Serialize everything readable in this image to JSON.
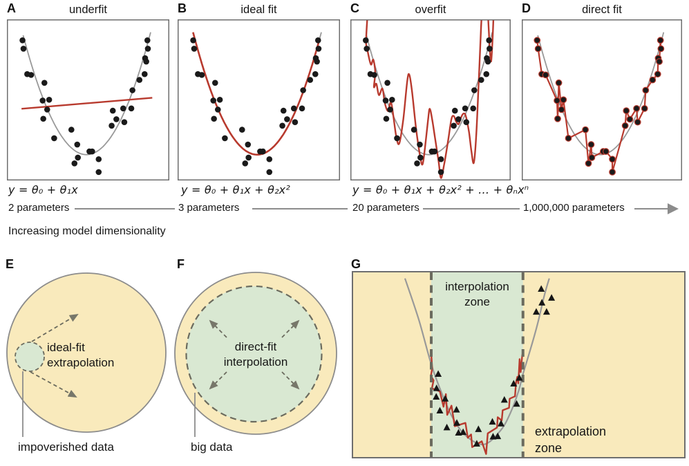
{
  "figure": {
    "caption": "Increasing model dimensionality"
  },
  "colors": {
    "red_fit": "#b83a2e",
    "gray_curve": "#999999",
    "dot": "#1a1a1a",
    "panel_border": "#6e6e6e",
    "axis_gray": "#8c8c8c",
    "yellow_fill": "#f9eabc",
    "green_fill": "#d9e8d2",
    "circle_stroke": "#8c8c8c",
    "dash_stroke": "#6b6b5e",
    "triangle": "#161616",
    "text": "#161616"
  },
  "top_panels": [
    {
      "letter": "A",
      "title": "underfit",
      "formula": "y = θ₀ + θ₁x",
      "param_label": "2 parameters"
    },
    {
      "letter": "B",
      "title": "ideal fit",
      "formula": "y = θ₀ + θ₁x + θ₂x²",
      "param_label": "3 parameters"
    },
    {
      "letter": "C",
      "title": "overfit",
      "formula": "y = θ₀ + θ₁x + θ₂x² + … + θₙxⁿ",
      "param_label": "20 parameters"
    },
    {
      "letter": "D",
      "title": "direct fit",
      "formula": "",
      "param_label": "1,000,000 parameters"
    }
  ],
  "panel_e": {
    "letter": "E",
    "label_line1": "ideal-fit",
    "label_line2": "extrapolation",
    "callout": "impoverished data"
  },
  "panel_f": {
    "letter": "F",
    "label_line1": "direct-fit",
    "label_line2": "interpolation",
    "callout": "big data"
  },
  "panel_g": {
    "letter": "G",
    "interp_line1": "interpolation",
    "interp_line2": "zone",
    "extrap_line1": "extrapolation",
    "extrap_line2": "zone"
  },
  "chart_data": {
    "type": "scatter",
    "coordinate_note": "normalized panel coordinates: x 0→1 left→right, y 0→1 top→bottom",
    "scatter_points": [
      [
        0.096,
        0.13
      ],
      [
        0.102,
        0.182
      ],
      [
        0.125,
        0.34
      ],
      [
        0.149,
        0.345
      ],
      [
        0.231,
        0.394
      ],
      [
        0.22,
        0.504
      ],
      [
        0.26,
        0.499
      ],
      [
        0.248,
        0.56
      ],
      [
        0.224,
        0.617
      ],
      [
        0.291,
        0.738
      ],
      [
        0.397,
        0.685
      ],
      [
        0.433,
        0.777
      ],
      [
        0.508,
        0.82
      ],
      [
        0.525,
        0.82
      ],
      [
        0.437,
        0.858
      ],
      [
        0.416,
        0.894
      ],
      [
        0.565,
        0.868
      ],
      [
        0.565,
        0.948
      ],
      [
        0.652,
        0.567
      ],
      [
        0.674,
        0.62
      ],
      [
        0.645,
        0.66
      ],
      [
        0.716,
        0.553
      ],
      [
        0.723,
        0.638
      ],
      [
        0.766,
        0.553
      ],
      [
        0.773,
        0.44
      ],
      [
        0.816,
        0.376
      ],
      [
        0.848,
        0.34
      ],
      [
        0.851,
        0.241
      ],
      [
        0.858,
        0.262
      ],
      [
        0.868,
        0.182
      ],
      [
        0.865,
        0.13
      ]
    ],
    "ground_truth_parabola": {
      "vertex_x": 0.49,
      "vertex_y": 0.84,
      "coeff": 4.87,
      "x_min": 0.1,
      "x_max": 0.885
    },
    "underfit_line": {
      "x1": 0.09,
      "y1": 0.555,
      "x2": 0.895,
      "y2": 0.487
    },
    "ideal_fit_parabola_range": {
      "x_min": 0.095,
      "x_max": 0.875
    },
    "overfit_path": [
      [
        0.107,
        -0.03
      ],
      [
        0.098,
        0.14
      ],
      [
        0.108,
        0.2
      ],
      [
        0.128,
        0.28
      ],
      [
        0.143,
        0.25
      ],
      [
        0.155,
        0.33
      ],
      [
        0.147,
        0.42
      ],
      [
        0.162,
        0.4
      ],
      [
        0.178,
        0.47
      ],
      [
        0.2,
        0.43
      ],
      [
        0.215,
        0.52
      ],
      [
        0.235,
        0.57
      ],
      [
        0.255,
        0.52
      ],
      [
        0.285,
        0.72
      ],
      [
        0.305,
        0.77
      ],
      [
        0.33,
        0.62
      ],
      [
        0.355,
        0.38
      ],
      [
        0.368,
        0.345
      ],
      [
        0.385,
        0.45
      ],
      [
        0.41,
        0.68
      ],
      [
        0.435,
        0.85
      ],
      [
        0.45,
        0.9
      ],
      [
        0.465,
        0.8
      ],
      [
        0.485,
        0.62
      ],
      [
        0.495,
        0.555
      ],
      [
        0.51,
        0.62
      ],
      [
        0.53,
        0.75
      ],
      [
        0.55,
        0.88
      ],
      [
        0.565,
        0.985
      ],
      [
        0.585,
        0.9
      ],
      [
        0.61,
        0.75
      ],
      [
        0.63,
        0.62
      ],
      [
        0.645,
        0.6
      ],
      [
        0.66,
        0.635
      ],
      [
        0.675,
        0.65
      ],
      [
        0.69,
        0.61
      ],
      [
        0.705,
        0.585
      ],
      [
        0.72,
        0.6
      ],
      [
        0.74,
        0.7
      ],
      [
        0.755,
        0.82
      ],
      [
        0.77,
        0.89
      ],
      [
        0.785,
        0.72
      ],
      [
        0.8,
        0.4
      ],
      [
        0.815,
        0.05
      ],
      [
        0.82,
        -0.03
      ]
    ],
    "overfit_path_right": [
      [
        0.858,
        -0.03
      ],
      [
        0.866,
        0.12
      ],
      [
        0.872,
        0.22
      ],
      [
        0.878,
        0.26
      ],
      [
        0.885,
        0.16
      ],
      [
        0.89,
        0.05
      ],
      [
        0.893,
        -0.03
      ]
    ],
    "direct_fit_rule": "red polyline connects the scatter points in order of increasing x",
    "panel_g": {
      "zone_left": 0.237,
      "zone_right": 0.513,
      "gray_curve": [
        [
          0.158,
          0.036
        ],
        [
          0.2,
          0.26
        ],
        [
          0.237,
          0.497
        ],
        [
          0.268,
          0.65
        ],
        [
          0.3,
          0.78
        ],
        [
          0.34,
          0.88
        ],
        [
          0.395,
          0.929
        ],
        [
          0.445,
          0.855
        ],
        [
          0.475,
          0.76
        ],
        [
          0.5,
          0.64
        ],
        [
          0.513,
          0.55
        ],
        [
          0.535,
          0.42
        ],
        [
          0.557,
          0.28
        ],
        [
          0.577,
          0.13
        ],
        [
          0.592,
          0.036
        ]
      ],
      "red_curve": [
        [
          0.237,
          0.44
        ],
        [
          0.24,
          0.52
        ],
        [
          0.236,
          0.56
        ],
        [
          0.244,
          0.584
        ],
        [
          0.239,
          0.627
        ],
        [
          0.263,
          0.643
        ],
        [
          0.274,
          0.726
        ],
        [
          0.281,
          0.658
        ],
        [
          0.285,
          0.77
        ],
        [
          0.298,
          0.72
        ],
        [
          0.308,
          0.831
        ],
        [
          0.34,
          0.813
        ],
        [
          0.347,
          0.893
        ],
        [
          0.357,
          0.875
        ],
        [
          0.36,
          0.943
        ],
        [
          0.389,
          0.912
        ],
        [
          0.402,
          0.98
        ],
        [
          0.407,
          0.869
        ],
        [
          0.435,
          0.838
        ],
        [
          0.437,
          0.782
        ],
        [
          0.449,
          0.8
        ],
        [
          0.452,
          0.745
        ],
        [
          0.471,
          0.732
        ],
        [
          0.473,
          0.683
        ],
        [
          0.489,
          0.67
        ],
        [
          0.492,
          0.596
        ],
        [
          0.496,
          0.565
        ],
        [
          0.499,
          0.6
        ],
        [
          0.503,
          0.47
        ],
        [
          0.506,
          0.54
        ],
        [
          0.511,
          0.445
        ]
      ],
      "triangles_interpolation": [
        [
          0.258,
          0.55
        ],
        [
          0.253,
          0.627
        ],
        [
          0.252,
          0.673
        ],
        [
          0.279,
          0.683
        ],
        [
          0.263,
          0.747
        ],
        [
          0.313,
          0.742
        ],
        [
          0.284,
          0.838
        ],
        [
          0.314,
          0.813
        ],
        [
          0.319,
          0.866
        ],
        [
          0.333,
          0.863
        ],
        [
          0.379,
          0.847
        ],
        [
          0.374,
          0.925
        ],
        [
          0.421,
          0.807
        ],
        [
          0.457,
          0.689
        ],
        [
          0.447,
          0.817
        ],
        [
          0.423,
          0.887
        ],
        [
          0.437,
          0.885
        ],
        [
          0.485,
          0.602
        ],
        [
          0.494,
          0.711
        ],
        [
          0.502,
          0.571
        ]
      ],
      "triangles_extrapolation": [
        [
          0.568,
          0.093
        ],
        [
          0.599,
          0.141
        ],
        [
          0.57,
          0.167
        ],
        [
          0.553,
          0.216
        ],
        [
          0.584,
          0.216
        ]
      ]
    }
  }
}
